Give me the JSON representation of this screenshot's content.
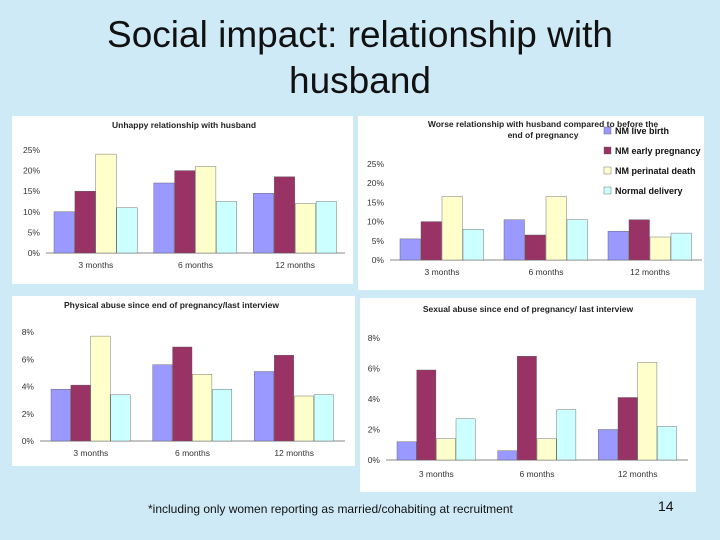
{
  "slide": {
    "title_line1": "Social impact: relationship with",
    "title_line2": "husband",
    "footnote": "*including only women reporting as married/cohabiting at recruitment",
    "page_number": "14"
  },
  "colors": {
    "NM live birth": "#9999ff",
    "NM early pregnancy": "#993366",
    "NM perinatal death": "#ffffcc",
    "Normal delivery": "#ccffff"
  },
  "legend": [
    "NM live birth",
    "NM early pregnancy",
    "NM perinatal death",
    "Normal delivery"
  ],
  "chart_data": [
    {
      "type": "bar",
      "title": "Unhappy relationship with husband",
      "title_line2": "",
      "categories": [
        "3 months",
        "6 months",
        "12 months"
      ],
      "ylim": [
        0,
        25
      ],
      "yticks": [
        "0%",
        "5%",
        "10%",
        "15%",
        "20%",
        "25%"
      ],
      "series": [
        {
          "name": "NM live birth",
          "values": [
            10,
            17,
            14.5
          ]
        },
        {
          "name": "NM early pregnancy",
          "values": [
            15,
            20,
            18.5
          ]
        },
        {
          "name": "NM perinatal death",
          "values": [
            24,
            21,
            12
          ]
        },
        {
          "name": "Normal delivery",
          "values": [
            11,
            12.5,
            12.5
          ]
        }
      ],
      "grid": false
    },
    {
      "type": "bar",
      "title": "Worse relationship with husband compared to before the",
      "title_line2": "end of pregnancy",
      "categories": [
        "3 months",
        "6 months",
        "12 months"
      ],
      "ylim": [
        0,
        25
      ],
      "yticks": [
        "0%",
        "5%",
        "10%",
        "15%",
        "20%",
        "25%"
      ],
      "series": [
        {
          "name": "NM live birth",
          "values": [
            5.5,
            10.5,
            7.5
          ]
        },
        {
          "name": "NM early pregnancy",
          "values": [
            10,
            6.5,
            10.5
          ]
        },
        {
          "name": "NM perinatal death",
          "values": [
            16.5,
            16.5,
            6
          ]
        },
        {
          "name": "Normal delivery",
          "values": [
            8,
            10.5,
            7
          ]
        }
      ],
      "legend_position": "right",
      "grid": false
    },
    {
      "type": "bar",
      "title": "Physical abuse since end of pregnancy/last interview",
      "title_line2": "",
      "categories": [
        "3 months",
        "6 months",
        "12 months"
      ],
      "ylim": [
        0,
        8
      ],
      "yticks": [
        "0%",
        "2%",
        "4%",
        "6%",
        "8%"
      ],
      "series": [
        {
          "name": "NM live birth",
          "values": [
            3.8,
            5.6,
            5.1
          ]
        },
        {
          "name": "NM early pregnancy",
          "values": [
            4.1,
            6.9,
            6.3
          ]
        },
        {
          "name": "NM perinatal death",
          "values": [
            7.7,
            4.9,
            3.3
          ]
        },
        {
          "name": "Normal delivery",
          "values": [
            3.4,
            3.8,
            3.4
          ]
        }
      ],
      "grid": false
    },
    {
      "type": "bar",
      "title": "Sexual abuse since end of pregnancy/ last interview",
      "title_line2": "",
      "categories": [
        "3 months",
        "6 months",
        "12 months"
      ],
      "ylim": [
        0,
        8
      ],
      "yticks": [
        "0%",
        "2%",
        "4%",
        "6%",
        "8%"
      ],
      "series": [
        {
          "name": "NM live birth",
          "values": [
            1.2,
            0.6,
            2.0
          ]
        },
        {
          "name": "NM early pregnancy",
          "values": [
            5.9,
            6.8,
            4.1
          ]
        },
        {
          "name": "NM perinatal death",
          "values": [
            1.4,
            1.4,
            6.4
          ]
        },
        {
          "name": "Normal delivery",
          "values": [
            2.7,
            3.3,
            2.2
          ]
        }
      ],
      "grid": false
    }
  ]
}
